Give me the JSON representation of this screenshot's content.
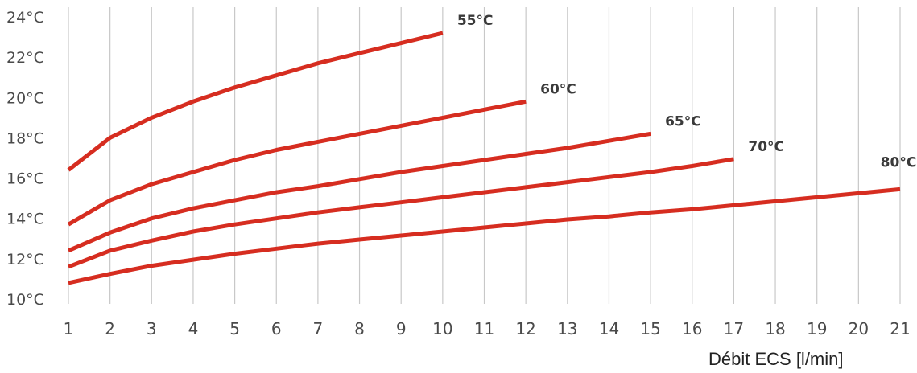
{
  "chart_data": {
    "type": "line",
    "title": "",
    "xlabel": "Débit ECS [l/min]",
    "ylabel": "",
    "x_ticks": [
      "1",
      "2",
      "3",
      "4",
      "5",
      "6",
      "7",
      "8",
      "9",
      "10",
      "11",
      "12",
      "13",
      "14",
      "15",
      "16",
      "17",
      "18",
      "19",
      "20",
      "21"
    ],
    "y_ticks": [
      "10°C",
      "12°C",
      "14°C",
      "16°C",
      "18°C",
      "20°C",
      "22°C",
      "24°C"
    ],
    "xlim": [
      1,
      21
    ],
    "ylim": [
      10,
      24
    ],
    "grid": {
      "vertical": true,
      "horizontal": false
    },
    "line_color": "#d62d20",
    "grid_color": "#c8c8c8",
    "series": [
      {
        "name": "55°C",
        "x": [
          1,
          2,
          3,
          4,
          5,
          6,
          7,
          8,
          9,
          10
        ],
        "y": [
          16.4,
          18.0,
          19.0,
          19.8,
          20.5,
          21.1,
          21.7,
          22.2,
          22.7,
          23.2
        ]
      },
      {
        "name": "60°C",
        "x": [
          1,
          2,
          3,
          4,
          5,
          6,
          7,
          8,
          9,
          10,
          11,
          12
        ],
        "y": [
          13.7,
          14.9,
          15.7,
          16.3,
          16.9,
          17.4,
          17.8,
          18.2,
          18.6,
          19.0,
          19.4,
          19.8
        ]
      },
      {
        "name": "65°C",
        "x": [
          1,
          2,
          3,
          4,
          5,
          6,
          7,
          8,
          9,
          10,
          11,
          12,
          13,
          14,
          15
        ],
        "y": [
          12.4,
          13.3,
          14.0,
          14.5,
          14.9,
          15.3,
          15.6,
          15.95,
          16.3,
          16.6,
          16.9,
          17.2,
          17.5,
          17.85,
          18.2
        ]
      },
      {
        "name": "70°C",
        "x": [
          1,
          2,
          3,
          4,
          5,
          6,
          7,
          8,
          9,
          10,
          11,
          12,
          13,
          14,
          15,
          16,
          17
        ],
        "y": [
          11.6,
          12.4,
          12.9,
          13.35,
          13.7,
          14.0,
          14.3,
          14.55,
          14.8,
          15.05,
          15.3,
          15.55,
          15.8,
          16.05,
          16.3,
          16.6,
          16.95
        ]
      },
      {
        "name": "80°C",
        "x": [
          1,
          2,
          3,
          4,
          5,
          6,
          7,
          8,
          9,
          10,
          11,
          12,
          13,
          14,
          15,
          16,
          17,
          18,
          19,
          20,
          21
        ],
        "y": [
          10.8,
          11.25,
          11.65,
          11.95,
          12.25,
          12.5,
          12.75,
          12.95,
          13.15,
          13.35,
          13.55,
          13.75,
          13.95,
          14.1,
          14.3,
          14.45,
          14.65,
          14.85,
          15.05,
          15.25,
          15.45
        ]
      }
    ]
  }
}
